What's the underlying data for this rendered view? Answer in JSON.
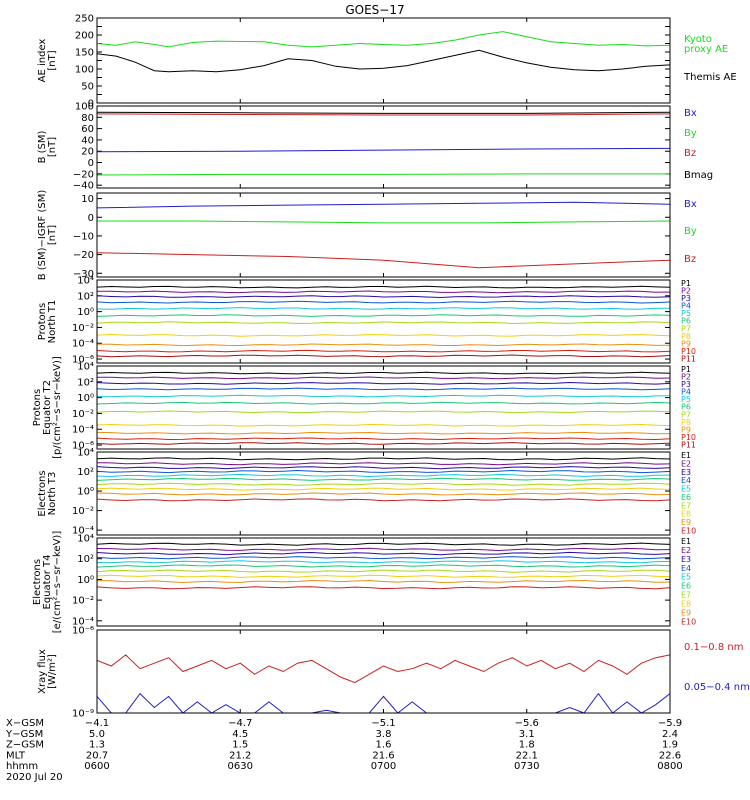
{
  "title": "GOES−17",
  "colors": {
    "black": "#000000",
    "green": "#1bdc1b",
    "red": "#cc1f1f",
    "blue": "#1f1fcc"
  },
  "chart_data": [
    {
      "id": "ae",
      "type": "line",
      "ylabel": [
        "AE index",
        "[nT]"
      ],
      "ylim": [
        0,
        250
      ],
      "yticks": [
        0,
        25,
        50,
        75,
        100,
        125,
        150,
        175,
        200,
        225,
        250
      ],
      "ytick_labels": [
        "0",
        "",
        "50",
        "",
        "100",
        "",
        "150",
        "",
        "200",
        "",
        "250"
      ],
      "series": [
        {
          "name": "Kyoto proxy AE",
          "label_lines": [
            "Kyoto",
            "proxy AE"
          ],
          "color": "#1bdc1b",
          "x": [
            0,
            4,
            8,
            12,
            15,
            20,
            25,
            30,
            35,
            40,
            45,
            50,
            55,
            60,
            65,
            70,
            75,
            80,
            85,
            90,
            95,
            100,
            105,
            110,
            115,
            120
          ],
          "values": [
            175,
            170,
            180,
            172,
            165,
            178,
            182,
            181,
            180,
            170,
            165,
            170,
            175,
            172,
            170,
            175,
            185,
            200,
            210,
            195,
            180,
            175,
            170,
            172,
            168,
            170
          ]
        },
        {
          "name": "Themis AE",
          "label_lines": [
            "Themis AE"
          ],
          "color": "#000000",
          "x": [
            0,
            4,
            8,
            12,
            15,
            20,
            25,
            30,
            35,
            40,
            45,
            50,
            55,
            60,
            65,
            70,
            75,
            80,
            85,
            90,
            95,
            100,
            105,
            110,
            115,
            120
          ],
          "values": [
            145,
            138,
            120,
            95,
            92,
            95,
            92,
            98,
            110,
            130,
            125,
            108,
            100,
            102,
            110,
            125,
            140,
            155,
            135,
            118,
            105,
            98,
            95,
            100,
            108,
            112
          ]
        }
      ]
    },
    {
      "id": "b",
      "type": "line",
      "ylabel": [
        "B (SM)",
        "[nT]"
      ],
      "ylim": [
        -45,
        100
      ],
      "yticks": [
        -40,
        -20,
        0,
        20,
        40,
        60,
        80,
        100
      ],
      "ytick_labels": [
        "−40",
        "−20",
        "0",
        "20",
        "40",
        "60",
        "80",
        "100"
      ],
      "series": [
        {
          "name": "Bx",
          "color": "#1f1fcc",
          "x": [
            0,
            30,
            60,
            90,
            120
          ],
          "values": [
            19,
            20,
            22,
            24,
            25
          ]
        },
        {
          "name": "By",
          "color": "#1bdc1b",
          "x": [
            0,
            30,
            60,
            90,
            120
          ],
          "values": [
            -22,
            -21,
            -21,
            -20,
            -20
          ]
        },
        {
          "name": "Bz",
          "color": "#cc1f1f",
          "x": [
            0,
            30,
            60,
            90,
            120
          ],
          "values": [
            86,
            85,
            84,
            84,
            86
          ]
        },
        {
          "name": "Bmag",
          "color": "#000000",
          "x": [
            0,
            30,
            60,
            90,
            120
          ],
          "values": [
            89,
            88,
            87,
            87,
            89
          ]
        }
      ]
    },
    {
      "id": "db",
      "type": "line",
      "ylabel": [
        "B (SM)−IGRF (SM)",
        "[nT]"
      ],
      "ylim": [
        -32,
        13
      ],
      "yticks": [
        -30,
        -20,
        -10,
        0,
        10
      ],
      "ytick_labels": [
        "−30",
        "−20",
        "−10",
        "0",
        "10"
      ],
      "series": [
        {
          "name": "Bx",
          "color": "#1f1fcc",
          "x": [
            0,
            20,
            40,
            60,
            80,
            100,
            120
          ],
          "values": [
            5,
            6,
            6.5,
            7,
            7.5,
            8,
            7
          ]
        },
        {
          "name": "By",
          "color": "#1bdc1b",
          "x": [
            0,
            20,
            40,
            60,
            80,
            100,
            120
          ],
          "values": [
            -2,
            -2,
            -2.5,
            -3,
            -3,
            -2.5,
            -2
          ]
        },
        {
          "name": "Bz",
          "color": "#cc1f1f",
          "x": [
            0,
            20,
            40,
            60,
            80,
            100,
            120
          ],
          "values": [
            -19,
            -20,
            -21,
            -23,
            -27,
            -25,
            -23
          ]
        }
      ]
    },
    {
      "id": "pn",
      "type": "line",
      "yscale": "log",
      "ylabel": [
        "Protons",
        "North T1"
      ],
      "ylim": [
        -6.5,
        4
      ],
      "yticks": [
        -6,
        -4,
        -2,
        0,
        2,
        4
      ],
      "ytick_labels": [
        "10⁻⁶",
        "10⁻⁴",
        "10⁻²",
        "10⁰",
        "10²",
        "10⁴"
      ],
      "channels": [
        {
          "name": "P1",
          "color": "#000000",
          "log": 3.1
        },
        {
          "name": "P2",
          "color": "#7a0a8c",
          "log": 2.5
        },
        {
          "name": "P3",
          "color": "#2a0a9e",
          "log": 1.9
        },
        {
          "name": "P4",
          "color": "#0a55d8",
          "log": 1.2
        },
        {
          "name": "P5",
          "color": "#14c8e0",
          "log": 0.4
        },
        {
          "name": "P6",
          "color": "#18c878",
          "log": -0.5
        },
        {
          "name": "P7",
          "color": "#a8d818",
          "log": -1.4
        },
        {
          "name": "P8",
          "color": "#f0d010",
          "log": -3.0
        },
        {
          "name": "P9",
          "color": "#e89010",
          "log": -4.2
        },
        {
          "name": "P10",
          "color": "#d82010",
          "log": -5.0
        },
        {
          "name": "P11",
          "color": "#a81010",
          "log": -5.6
        }
      ]
    },
    {
      "id": "pe",
      "type": "line",
      "yscale": "log",
      "ylabel": [
        "Protons",
        "Equator T2",
        "[p/(cm²−s−sr−keV)]"
      ],
      "ylim": [
        -6.5,
        4
      ],
      "yticks": [
        -6,
        -4,
        -2,
        0,
        2,
        4
      ],
      "ytick_labels": [
        "10⁻⁶",
        "10⁻⁴",
        "10⁻²",
        "10⁰",
        "10²",
        "10⁴"
      ],
      "channels": [
        {
          "name": "P1",
          "color": "#000000",
          "log": 3.1
        },
        {
          "name": "P2",
          "color": "#7a0a8c",
          "log": 2.5
        },
        {
          "name": "P3",
          "color": "#2a0a9e",
          "log": 1.8
        },
        {
          "name": "P4",
          "color": "#0a55d8",
          "log": 1.1
        },
        {
          "name": "P5",
          "color": "#14c8e0",
          "log": 0.2
        },
        {
          "name": "P6",
          "color": "#18c878",
          "log": -0.7
        },
        {
          "name": "P7",
          "color": "#a8d818",
          "log": -1.8
        },
        {
          "name": "P8",
          "color": "#f0d010",
          "log": -3.5
        },
        {
          "name": "P9",
          "color": "#e89010",
          "log": -4.5
        },
        {
          "name": "P10",
          "color": "#d82010",
          "log": -5.2
        },
        {
          "name": "P11",
          "color": "#a81010",
          "log": -5.8
        }
      ]
    },
    {
      "id": "en",
      "type": "line",
      "yscale": "log",
      "ylabel": [
        "Electrons",
        "North T3"
      ],
      "ylim": [
        -4.5,
        4
      ],
      "yticks": [
        -4,
        -2,
        0,
        2,
        4
      ],
      "ytick_labels": [
        "10⁻⁴",
        "10⁻²",
        "10⁰",
        "10²",
        "10⁴"
      ],
      "channels": [
        {
          "name": "E1",
          "color": "#000000",
          "log": 3.3
        },
        {
          "name": "E2",
          "color": "#7a0a8c",
          "log": 2.8
        },
        {
          "name": "E3",
          "color": "#2a0a9e",
          "log": 2.4
        },
        {
          "name": "E4",
          "color": "#0a55d8",
          "log": 2.0
        },
        {
          "name": "E5",
          "color": "#14c8e0",
          "log": 1.6
        },
        {
          "name": "E6",
          "color": "#18c878",
          "log": 1.2
        },
        {
          "name": "E7",
          "color": "#a8d818",
          "log": 0.7
        },
        {
          "name": "E8",
          "color": "#f0d010",
          "log": 0.2
        },
        {
          "name": "E9",
          "color": "#e89010",
          "log": -0.3
        },
        {
          "name": "E10",
          "color": "#cc1f1f",
          "log": -0.9
        }
      ]
    },
    {
      "id": "ee",
      "type": "line",
      "yscale": "log",
      "ylabel": [
        "Electrons",
        "Equator T4",
        "[e/(cm²−s−sr−keV)]"
      ],
      "ylim": [
        -4.5,
        4
      ],
      "yticks": [
        -4,
        -2,
        0,
        2,
        4
      ],
      "ytick_labels": [
        "10⁻⁴",
        "10⁻²",
        "10⁰",
        "10²",
        "10⁴"
      ],
      "channels": [
        {
          "name": "E1",
          "color": "#000000",
          "log": 3.4
        },
        {
          "name": "E2",
          "color": "#7a0a8c",
          "log": 2.9
        },
        {
          "name": "E3",
          "color": "#2a0a9e",
          "log": 2.5
        },
        {
          "name": "E4",
          "color": "#0a55d8",
          "log": 2.1
        },
        {
          "name": "E5",
          "color": "#14c8e0",
          "log": 1.7
        },
        {
          "name": "E6",
          "color": "#18c878",
          "log": 1.3
        },
        {
          "name": "E7",
          "color": "#a8d818",
          "log": 0.8
        },
        {
          "name": "E8",
          "color": "#f0d010",
          "log": 0.3
        },
        {
          "name": "E9",
          "color": "#e89010",
          "log": -0.2
        },
        {
          "name": "E10",
          "color": "#cc1f1f",
          "log": -0.8
        }
      ]
    },
    {
      "id": "xray",
      "type": "line",
      "yscale": "log",
      "ylabel": [
        "Xray flux",
        "[W/m²]"
      ],
      "ylim": [
        -9,
        -6
      ],
      "yticks": [
        -9,
        -6
      ],
      "ytick_labels": [
        "10⁻⁹",
        "10⁻⁶"
      ],
      "series": [
        {
          "name": "0.1−0.8 nm",
          "color": "#cc1f1f",
          "x": [
            0,
            3,
            6,
            9,
            12,
            15,
            18,
            21,
            24,
            27,
            30,
            33,
            36,
            39,
            42,
            45,
            48,
            51,
            54,
            57,
            60,
            63,
            66,
            69,
            72,
            75,
            78,
            81,
            84,
            87,
            90,
            93,
            96,
            99,
            102,
            105,
            108,
            111,
            114,
            117,
            120
          ],
          "values": [
            -7.1,
            -7.3,
            -6.9,
            -7.4,
            -7.2,
            -7.0,
            -7.5,
            -7.3,
            -7.1,
            -7.4,
            -7.2,
            -7.6,
            -7.3,
            -7.5,
            -7.2,
            -7.1,
            -7.4,
            -7.7,
            -7.9,
            -7.6,
            -7.3,
            -7.5,
            -7.4,
            -7.2,
            -7.4,
            -7.1,
            -7.3,
            -7.5,
            -7.2,
            -7.0,
            -7.3,
            -7.1,
            -7.4,
            -7.2,
            -7.5,
            -7.1,
            -7.3,
            -7.6,
            -7.2,
            -7.0,
            -6.9
          ]
        },
        {
          "name": "0.05−0.4 nm",
          "color": "#1f1fcc",
          "x": [
            0,
            3,
            6,
            9,
            12,
            15,
            18,
            21,
            24,
            27,
            30,
            33,
            36,
            39,
            42,
            45,
            48,
            51,
            54,
            57,
            60,
            63,
            66,
            69,
            72,
            75,
            78,
            81,
            84,
            87,
            90,
            93,
            96,
            99,
            102,
            105,
            108,
            111,
            114,
            117,
            120
          ],
          "values": [
            -8.4,
            -9.0,
            -9.0,
            -8.3,
            -8.8,
            -8.4,
            -9.0,
            -8.6,
            -9.0,
            -8.7,
            -9.0,
            -9.0,
            -8.6,
            -9.0,
            -9.0,
            -9.0,
            -8.9,
            -9.0,
            -9.0,
            -9.0,
            -8.4,
            -9.0,
            -8.6,
            -9.0,
            -9.0,
            -9.0,
            -9.0,
            -9.0,
            -9.0,
            -9.0,
            -9.0,
            -9.0,
            -9.0,
            -8.8,
            -9.0,
            -8.3,
            -9.0,
            -8.6,
            -9.0,
            -8.7,
            -8.3
          ]
        }
      ]
    }
  ],
  "x_axis": {
    "range_minutes": [
      0,
      120
    ],
    "tick_minutes": [
      0,
      30,
      60,
      90,
      120
    ],
    "rows": [
      {
        "label": "X−GSM",
        "values": [
          "−4.1",
          "−4.7",
          "−5.1",
          "−5.6",
          "−5.9"
        ]
      },
      {
        "label": "Y−GSM",
        "values": [
          "5.0",
          "4.5",
          "3.8",
          "3.1",
          "2.4"
        ]
      },
      {
        "label": "Z−GSM",
        "values": [
          "1.3",
          "1.5",
          "1.6",
          "1.8",
          "1.9"
        ]
      },
      {
        "label": "MLT",
        "values": [
          "20.7",
          "21.2",
          "21.6",
          "22.1",
          "22.6"
        ]
      },
      {
        "label": "hhmm",
        "values": [
          "0600",
          "0630",
          "0700",
          "0730",
          "0800"
        ]
      }
    ],
    "date": "2020 Jul 20"
  }
}
